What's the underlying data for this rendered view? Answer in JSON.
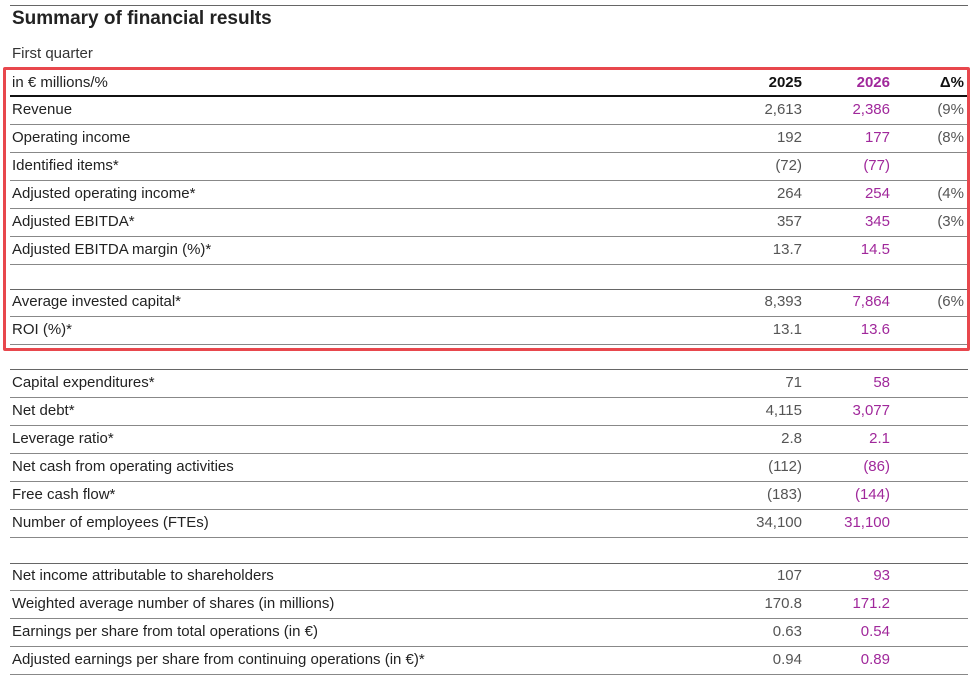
{
  "header": {
    "title": "Summary of financial results",
    "subtitle": "First quarter"
  },
  "table": {
    "columns": [
      "in € millions/%",
      "2025",
      "2026",
      "Δ%"
    ],
    "groups": [
      [
        [
          "Revenue",
          "2,613",
          "2,386",
          "(9%"
        ],
        [
          "Operating income",
          "192",
          "177",
          "(8%"
        ],
        [
          "Identified items*",
          "(72)",
          "(77)"
        ],
        [
          "Adjusted operating income*",
          "264",
          "254",
          "(4%"
        ],
        [
          "Adjusted EBITDA*",
          "357",
          "345",
          "(3%"
        ],
        [
          "Adjusted EBITDA margin (%)*",
          "13.7",
          "14.5"
        ]
      ],
      [
        [
          "Average invested capital*",
          "8,393",
          "7,864",
          "(6%"
        ],
        [
          "ROI (%)*",
          "13.1",
          "13.6"
        ]
      ],
      [
        [
          "Capital expenditures*",
          "71",
          "58"
        ],
        [
          "Net debt*",
          "4,115",
          "3,077"
        ],
        [
          "Leverage ratio*",
          "2.8",
          "2.1"
        ],
        [
          "Net cash from operating activities",
          "(112)",
          "(86)"
        ],
        [
          "Free cash flow*",
          "(183)",
          "(144)"
        ],
        [
          "Number of employees (FTEs)",
          "34,100",
          "31,100"
        ]
      ],
      [
        [
          "Net income attributable to shareholders",
          "107",
          "93"
        ],
        [
          "Weighted average number of shares (in millions)",
          "170.8",
          "171.2"
        ],
        [
          "Earnings per share from total operations (in €)",
          "0.63",
          "0.54"
        ],
        [
          "Adjusted earnings per share from continuing operations (in €)*",
          "0.94",
          "0.89"
        ]
      ]
    ]
  }
}
